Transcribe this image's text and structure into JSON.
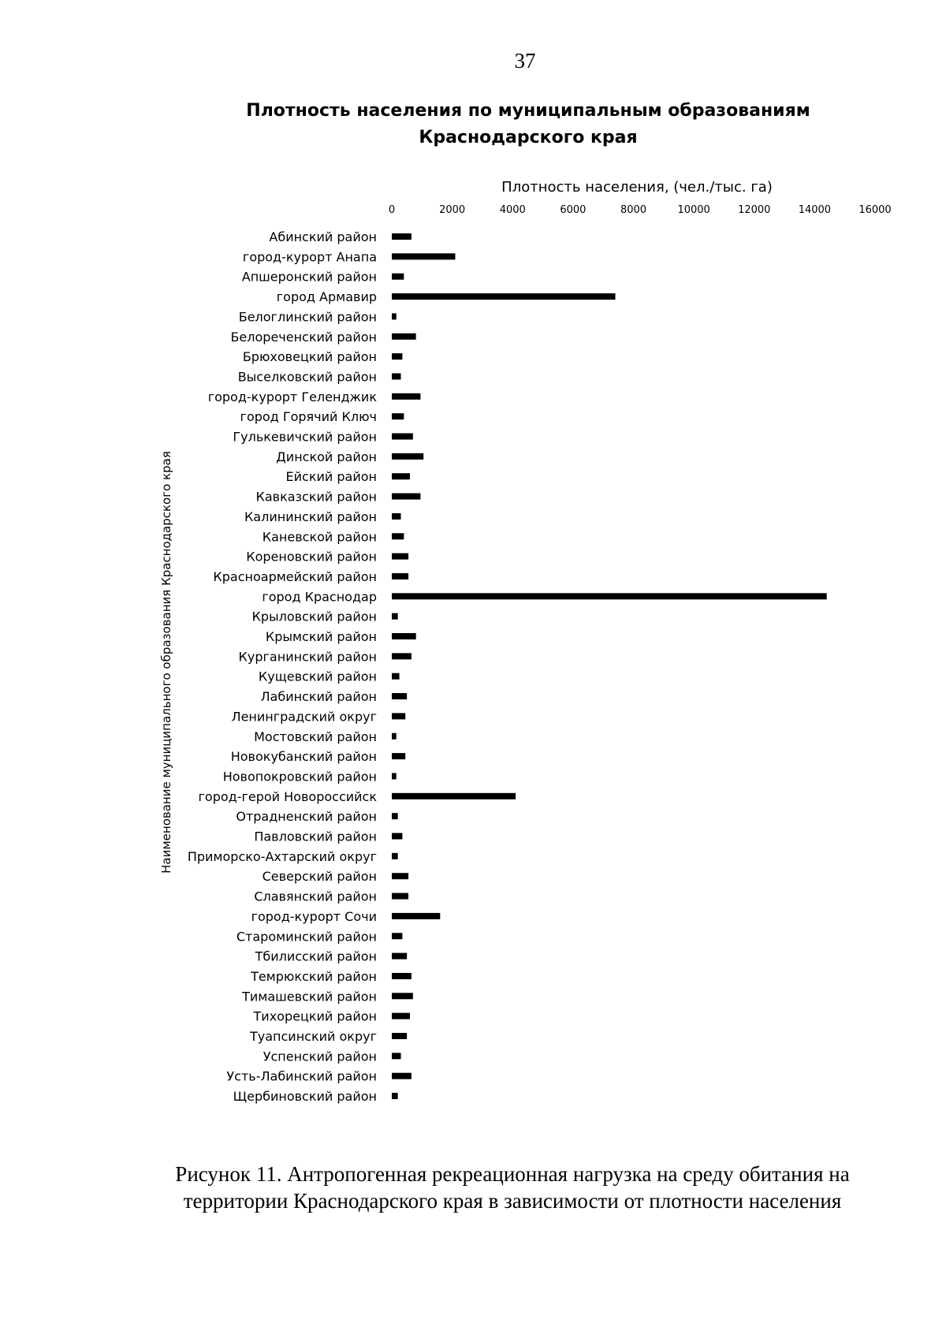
{
  "page": {
    "number": "37",
    "caption_lines": [
      "Рисунок 11. Антропогенная рекреационная нагрузка на среду обитания на",
      "территории Краснодарского края в зависимости от плотности населения"
    ]
  },
  "chart_data": {
    "type": "bar",
    "orientation": "horizontal",
    "title_lines": [
      "Плотность населения по муниципальным образованиям",
      "Краснодарского края"
    ],
    "xlabel": "Плотность населения, (чел./тыс. га)",
    "ylabel": "Наименование муниципального образования Краснодарского края",
    "xaxis_position": "top",
    "xlim": [
      0,
      16000
    ],
    "xticks": [
      0,
      2000,
      4000,
      6000,
      8000,
      10000,
      12000,
      14000,
      16000
    ],
    "grid": false,
    "legend": false,
    "bar_color": "#000000",
    "categories": [
      "Абинский район",
      "город-курорт Анапа",
      "Апшеронский район",
      "город Армавир",
      "Белоглинский район",
      "Белореченский район",
      "Брюховецкий район",
      "Выселковский район",
      "город-курорт  Геленджик",
      "город Горячий Ключ",
      "Гулькевичский район",
      "Динской район",
      "Ейский район",
      "Кавказский район",
      "Калининский район",
      "Каневской район",
      "Кореновский район",
      "Красноармейский район",
      "город Краснодар",
      "Крыловский район",
      "Крымский район",
      "Курганинский район",
      "Кущевский район",
      "Лабинский район",
      "Ленинградский округ",
      "Мостовский район",
      "Новокубанский район",
      "Новопокровский район",
      "город-герой Новороссийск",
      "Отрадненский район",
      "Павловский район",
      "Приморско-Ахтарский округ",
      "Северский район",
      "Славянский район",
      "город-курорт Сочи",
      "Староминский район",
      "Тбилисский район",
      "Темрюкский район",
      "Тимашевский район",
      "Тихорецкий район",
      "Туапсинский округ",
      "Успенский район",
      "Усть-Лабинский район",
      "Щербиновский район"
    ],
    "values": [
      650,
      2100,
      400,
      7400,
      150,
      800,
      350,
      300,
      950,
      400,
      700,
      1050,
      600,
      950,
      300,
      400,
      550,
      550,
      14400,
      200,
      800,
      650,
      250,
      500,
      450,
      150,
      450,
      150,
      4100,
      200,
      350,
      200,
      550,
      550,
      1600,
      350,
      500,
      650,
      700,
      600,
      500,
      300,
      650,
      200
    ]
  }
}
